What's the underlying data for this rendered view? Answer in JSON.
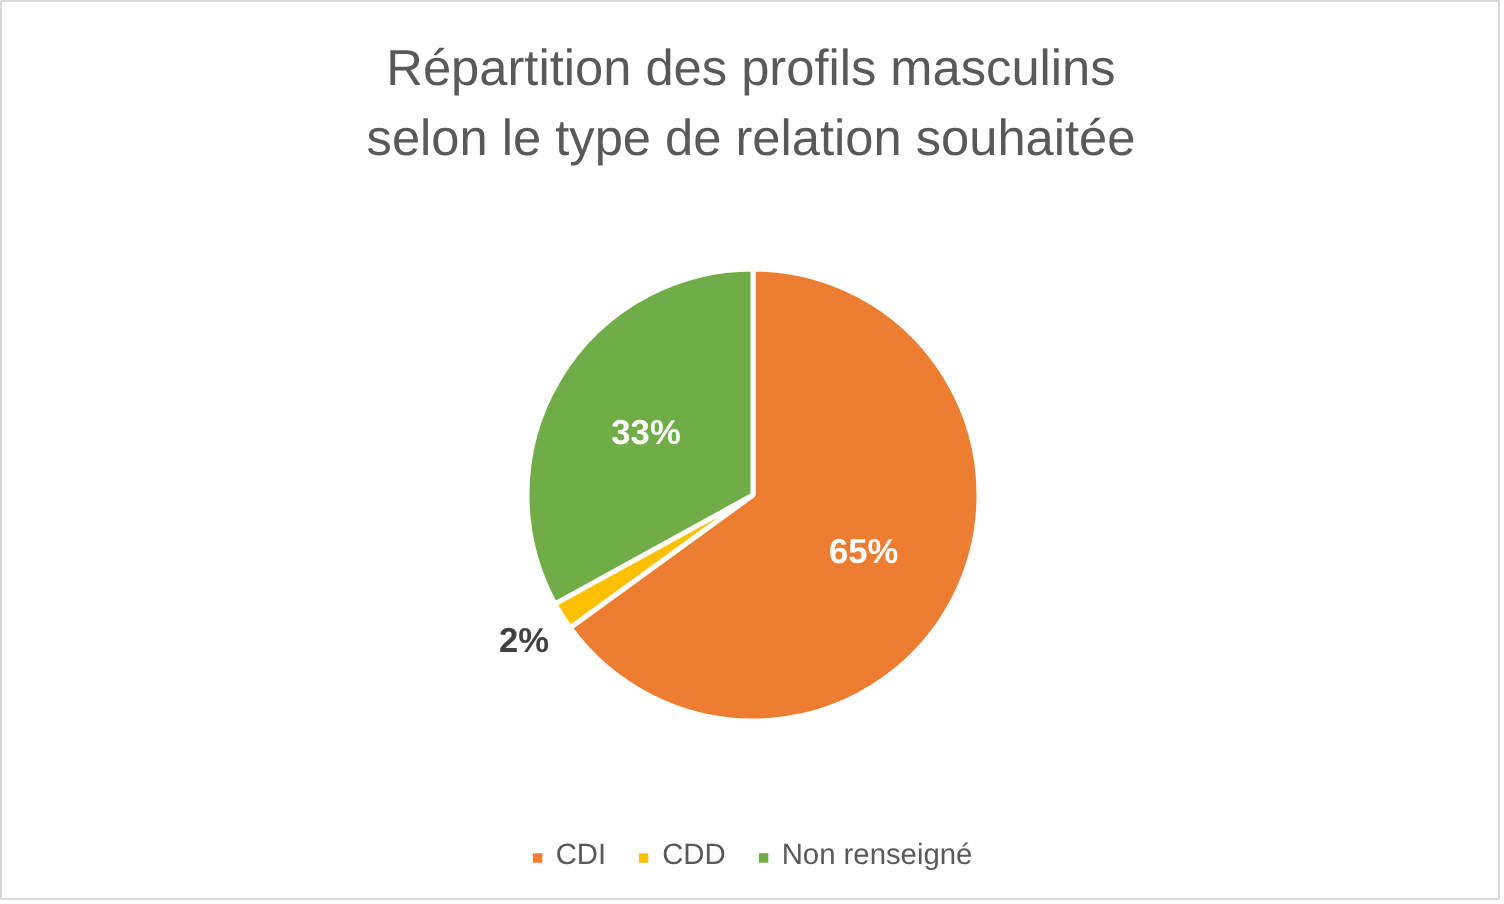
{
  "chart_data": {
    "type": "pie",
    "title": "Répartition des profils masculins\nselon le type de relation souhaitée",
    "categories": [
      "CDI",
      "CDD",
      "Non renseigné"
    ],
    "values": [
      65,
      2,
      33
    ],
    "colors": [
      "#ed7d31",
      "#ffc000",
      "#70ad47"
    ],
    "value_labels": [
      "65%",
      "2%",
      "33%"
    ],
    "legend": "bottom"
  }
}
